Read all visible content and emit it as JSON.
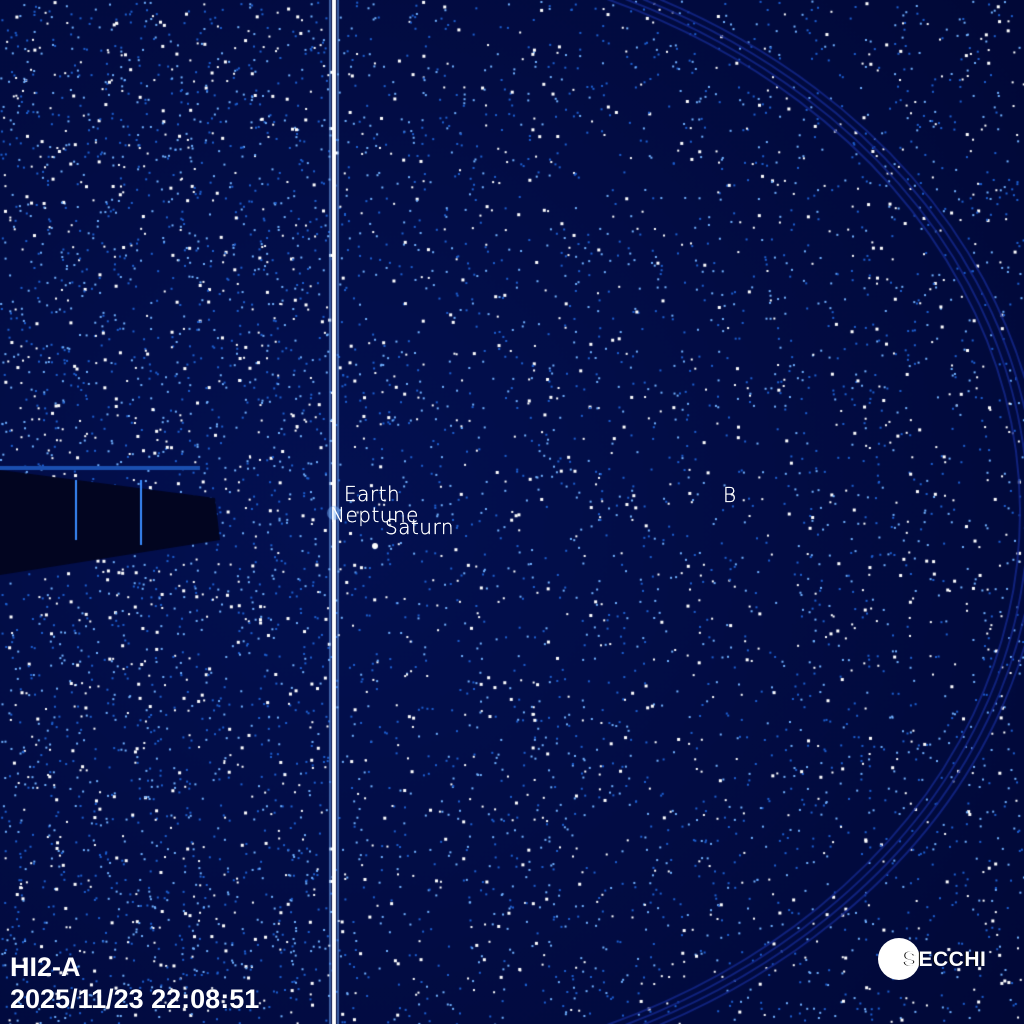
{
  "image": {
    "instrument": "HI2-A",
    "timestamp": "2025/11/23 22:08:51",
    "logo_text": "SECCHI",
    "colors": {
      "background": "#020a3a",
      "stars": "#ffffff",
      "star_glow": "#3a8cff"
    }
  },
  "labels": [
    {
      "name": "earth",
      "text": "Earth"
    },
    {
      "name": "neptune",
      "text": "Neptune"
    },
    {
      "name": "saturn",
      "text": "Saturn"
    },
    {
      "name": "b",
      "text": "B"
    }
  ]
}
